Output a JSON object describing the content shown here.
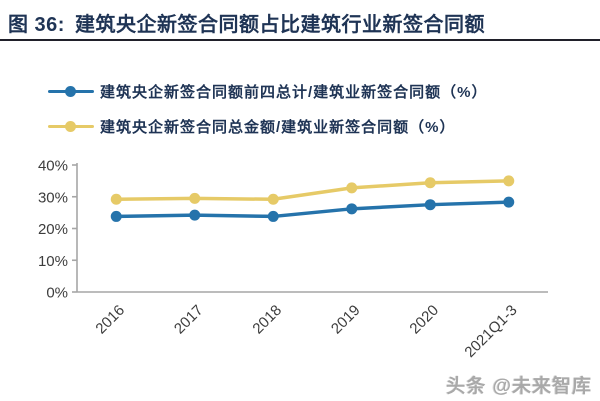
{
  "header": {
    "label": "图 36:",
    "title": "建筑央企新签合同额占比建筑行业新签合同额"
  },
  "legend": {
    "items": [
      {
        "label": "建筑央企新签合同额前四总计/建筑业新签合同额（%）",
        "color": "#2573ab"
      },
      {
        "label": "建筑央企新签合同总金额/建筑业新签合同额（%）",
        "color": "#e6ca67"
      }
    ]
  },
  "chart_data": {
    "type": "line",
    "title": "建筑央企新签合同额占比建筑行业新签合同额",
    "categories": [
      "2016",
      "2017",
      "2018",
      "2019",
      "2020",
      "2021Q1-3"
    ],
    "series": [
      {
        "name": "建筑央企新签合同额前四总计/建筑业新签合同额（%）",
        "color": "#2573ab",
        "values": [
          23.8,
          24.2,
          23.8,
          26.2,
          27.5,
          28.3
        ]
      },
      {
        "name": "建筑央企新签合同总金额/建筑业新签合同额（%）",
        "color": "#e6ca67",
        "values": [
          29.2,
          29.5,
          29.2,
          32.8,
          34.4,
          35.0
        ]
      }
    ],
    "xlabel": "",
    "ylabel": "",
    "ylim": [
      0,
      40
    ],
    "yticks": [
      0,
      10,
      20,
      30,
      40
    ],
    "ytick_labels": [
      "0%",
      "10%",
      "20%",
      "30%",
      "40%"
    ],
    "grid": false,
    "legend_position": "top-left",
    "axis_color": "#a6a6a6",
    "tick_label_color": "#3d3d3d",
    "marker": "circle",
    "line_width": 3.5,
    "marker_radius": 5.5
  },
  "watermark": {
    "text": "头条 @未来智库"
  },
  "colors": {
    "title_text": "#1f3455",
    "divider": "#20202a",
    "background": "#ffffff"
  }
}
